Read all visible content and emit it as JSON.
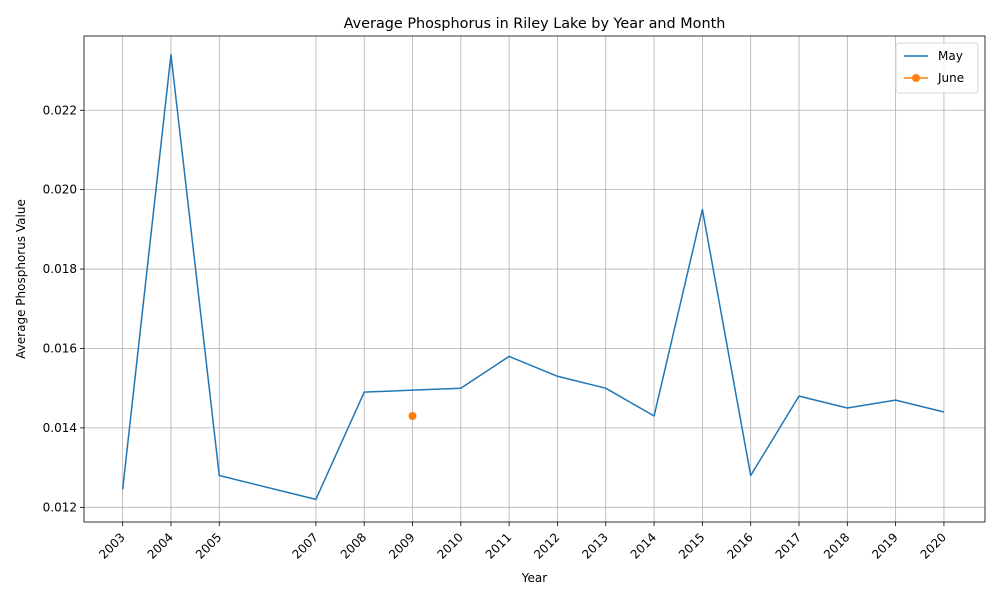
{
  "chart_data": {
    "type": "line",
    "title": "Average Phosphorus in Riley Lake by Year and Month",
    "xlabel": "Year",
    "ylabel": "Average Phosphorus Value",
    "x_ticks": [
      2003,
      2004,
      2005,
      2007,
      2008,
      2009,
      2010,
      2011,
      2012,
      2013,
      2014,
      2015,
      2016,
      2017,
      2018,
      2019,
      2020
    ],
    "y_ticks": [
      0.012,
      0.014,
      0.016,
      0.018,
      0.02,
      0.022
    ],
    "y_tick_labels": [
      "0.012",
      "0.014",
      "0.016",
      "0.018",
      "0.020",
      "0.022"
    ],
    "xlim": [
      2002.2,
      2020.85
    ],
    "ylim": [
      0.01163,
      0.02387
    ],
    "grid": true,
    "legend_position": "top-right",
    "series": [
      {
        "name": "May",
        "color": "#1f77b4",
        "marker": "none",
        "x": [
          2003,
          2004,
          2005,
          2007,
          2008,
          2009,
          2010,
          2011,
          2012,
          2013,
          2014,
          2015,
          2016,
          2017,
          2018,
          2019,
          2020
        ],
        "y": [
          0.01245,
          0.0234,
          0.0128,
          0.0122,
          0.0149,
          0.01495,
          0.015,
          0.0158,
          0.0153,
          0.015,
          0.0143,
          0.0195,
          0.0128,
          0.0148,
          0.0145,
          0.0147,
          0.0144
        ]
      },
      {
        "name": "June",
        "color": "#ff7f0e",
        "marker": "circle",
        "x": [
          2009
        ],
        "y": [
          0.0143
        ]
      }
    ]
  }
}
